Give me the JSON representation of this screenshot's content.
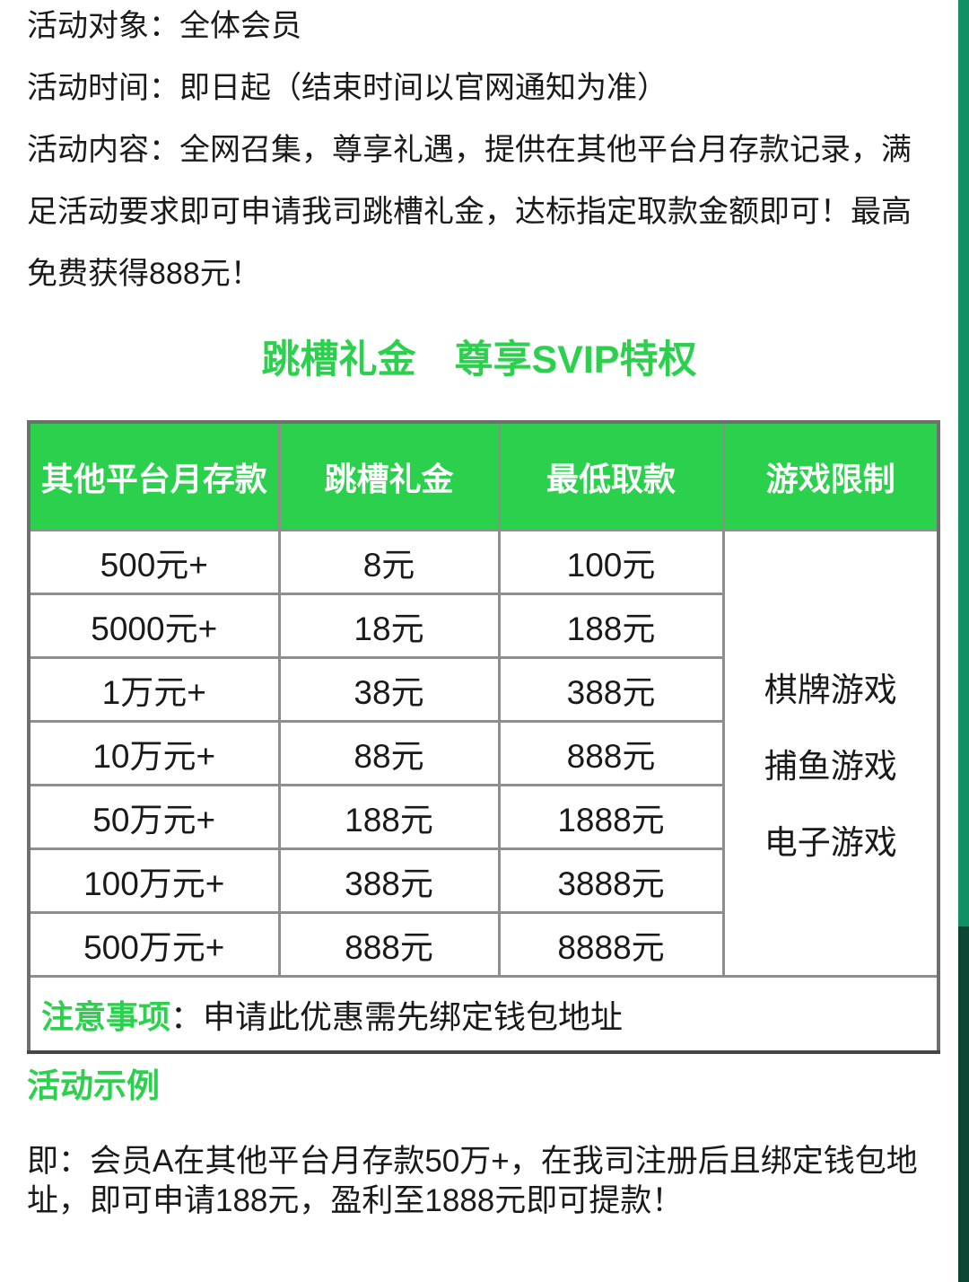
{
  "colors": {
    "green": "#2bd14d",
    "strip-top": "#0f8f63",
    "strip-bottom": "#0b4634",
    "border": "#8e8e8e",
    "border-outer": "#6f6f6f",
    "text": "#1a1a1a",
    "header-text": "#ffffff"
  },
  "intro": {
    "lines": [
      "活动对象：全体会员",
      "活动时间：即日起（结束时间以官网通知为准）",
      "活动内容：全网召集，尊享礼遇，提供在其他平台月存款记录，满",
      "足活动要求即可申请我司跳槽礼金，达标指定取款金额即可！最高",
      "免费获得888元！"
    ]
  },
  "headline": {
    "text": "跳槽礼金　尊享SVIP特权"
  },
  "table": {
    "headers": [
      "其他平台月存款",
      "跳槽礼金",
      "最低取款",
      "游戏限制"
    ],
    "rows": [
      {
        "deposit": "500元+",
        "bonus": "8元",
        "min_withdraw": "100元"
      },
      {
        "deposit": "5000元+",
        "bonus": "18元",
        "min_withdraw": "188元"
      },
      {
        "deposit": "1万元+",
        "bonus": "38元",
        "min_withdraw": "388元"
      },
      {
        "deposit": "10万元+",
        "bonus": "88元",
        "min_withdraw": "888元"
      },
      {
        "deposit": "50万元+",
        "bonus": "188元",
        "min_withdraw": "1888元"
      },
      {
        "deposit": "100万元+",
        "bonus": "388元",
        "min_withdraw": "3888元"
      },
      {
        "deposit": "500万元+",
        "bonus": "888元",
        "min_withdraw": "8888元"
      }
    ],
    "game_restrictions": [
      "棋牌游戏",
      "捕鱼游戏",
      "电子游戏"
    ],
    "note": {
      "label": "注意事项",
      "text": "：申请此优惠需先绑定钱包地址"
    }
  },
  "example": {
    "title": "活动示例",
    "lines": [
      "即：会员A在其他平台月存款50万+，在我司注册后且绑定钱包地",
      "址，即可申请188元，盈利至1888元即可提款！"
    ]
  }
}
